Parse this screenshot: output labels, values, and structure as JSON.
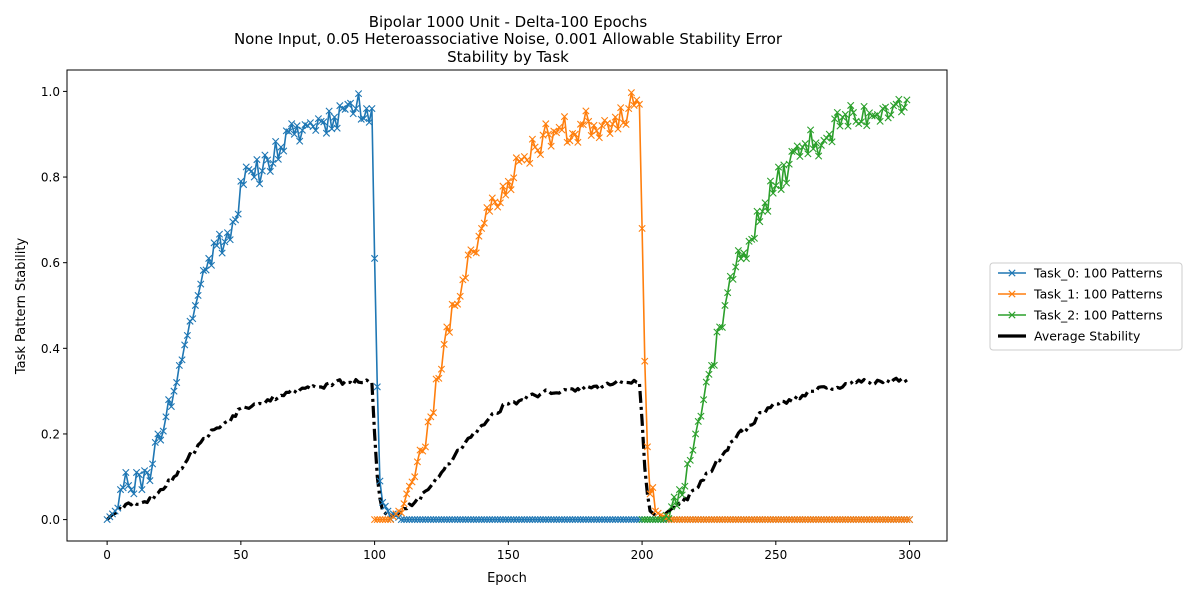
{
  "chart_data": {
    "type": "line",
    "title_lines": [
      "Bipolar 1000 Unit - Delta-100 Epochs",
      "None Input, 0.05 Heteroassociative Noise, 0.001 Allowable Stability Error",
      "Stability by Task"
    ],
    "xlabel": "Epoch",
    "ylabel": "Task Pattern Stability",
    "xlim": [
      -15,
      314
    ],
    "ylim": [
      -0.05,
      1.05
    ],
    "xticks": [
      0,
      50,
      100,
      150,
      200,
      250,
      300
    ],
    "yticks": [
      0.0,
      0.2,
      0.4,
      0.6,
      0.8,
      1.0
    ],
    "xtick_labels": [
      "0",
      "50",
      "100",
      "150",
      "200",
      "250",
      "300"
    ],
    "ytick_labels": [
      "0.0",
      "0.2",
      "0.4",
      "0.6",
      "0.8",
      "1.0"
    ],
    "grid": false,
    "legend_position": "outside right",
    "colors": {
      "task0": "#1f77b4",
      "task1": "#ff7f0e",
      "task2": "#2ca02c",
      "average": "#000000"
    },
    "series": [
      {
        "name": "Task_0: 100 Patterns",
        "key": "task0",
        "marker": "x",
        "linestyle": "solid",
        "anchors": [
          [
            0,
            0
          ],
          [
            3,
            0.02
          ],
          [
            5,
            0.07
          ],
          [
            7,
            0.11
          ],
          [
            9,
            0.07
          ],
          [
            11,
            0.11
          ],
          [
            13,
            0.07
          ],
          [
            15,
            0.11
          ],
          [
            17,
            0.13
          ],
          [
            19,
            0.2
          ],
          [
            22,
            0.24
          ],
          [
            25,
            0.3
          ],
          [
            27,
            0.36
          ],
          [
            30,
            0.43
          ],
          [
            33,
            0.5
          ],
          [
            35,
            0.55
          ],
          [
            38,
            0.61
          ],
          [
            41,
            0.64
          ],
          [
            45,
            0.67
          ],
          [
            48,
            0.7
          ],
          [
            50,
            0.79
          ],
          [
            55,
            0.8
          ],
          [
            60,
            0.84
          ],
          [
            65,
            0.87
          ],
          [
            70,
            0.9
          ],
          [
            75,
            0.92
          ],
          [
            80,
            0.93
          ],
          [
            85,
            0.94
          ],
          [
            88,
            0.96
          ],
          [
            90,
            0.97
          ],
          [
            93,
            0.96
          ],
          [
            97,
            0.96
          ],
          [
            99,
            0.96
          ],
          [
            100,
            0.61
          ],
          [
            101,
            0.31
          ],
          [
            102,
            0.09
          ],
          [
            103,
            0.04
          ],
          [
            105,
            0.02
          ],
          [
            108,
            0.01
          ],
          [
            110,
            0
          ],
          [
            300,
            0
          ]
        ],
        "noise": 0.035,
        "seed": 11
      },
      {
        "name": "Task_1: 100 Patterns",
        "key": "task1",
        "marker": "x",
        "linestyle": "solid",
        "anchors": [
          [
            100,
            0
          ],
          [
            106,
            0
          ],
          [
            109,
            0.02
          ],
          [
            112,
            0.06
          ],
          [
            115,
            0.1
          ],
          [
            118,
            0.16
          ],
          [
            121,
            0.24
          ],
          [
            124,
            0.33
          ],
          [
            127,
            0.45
          ],
          [
            130,
            0.5
          ],
          [
            133,
            0.56
          ],
          [
            136,
            0.63
          ],
          [
            140,
            0.68
          ],
          [
            143,
            0.72
          ],
          [
            146,
            0.73
          ],
          [
            150,
            0.79
          ],
          [
            155,
            0.84
          ],
          [
            160,
            0.87
          ],
          [
            165,
            0.9
          ],
          [
            170,
            0.91
          ],
          [
            175,
            0.9
          ],
          [
            180,
            0.93
          ],
          [
            185,
            0.92
          ],
          [
            190,
            0.94
          ],
          [
            195,
            0.96
          ],
          [
            198,
            0.98
          ],
          [
            199,
            0.97
          ],
          [
            200,
            0.68
          ],
          [
            201,
            0.37
          ],
          [
            202,
            0.17
          ],
          [
            203,
            0.06
          ],
          [
            205,
            0.02
          ],
          [
            207,
            0.01
          ],
          [
            210,
            0
          ],
          [
            300,
            0
          ]
        ],
        "noise": 0.035,
        "seed": 23
      },
      {
        "name": "Task_2: 100 Patterns",
        "key": "task2",
        "marker": "x",
        "linestyle": "solid",
        "anchors": [
          [
            200,
            0
          ],
          [
            208,
            0
          ],
          [
            211,
            0.03
          ],
          [
            214,
            0.07
          ],
          [
            217,
            0.13
          ],
          [
            220,
            0.2
          ],
          [
            223,
            0.28
          ],
          [
            226,
            0.36
          ],
          [
            229,
            0.45
          ],
          [
            232,
            0.53
          ],
          [
            235,
            0.59
          ],
          [
            240,
            0.65
          ],
          [
            245,
            0.72
          ],
          [
            250,
            0.78
          ],
          [
            255,
            0.83
          ],
          [
            260,
            0.87
          ],
          [
            265,
            0.88
          ],
          [
            270,
            0.9
          ],
          [
            275,
            0.94
          ],
          [
            280,
            0.93
          ],
          [
            285,
            0.95
          ],
          [
            290,
            0.96
          ],
          [
            295,
            0.97
          ],
          [
            299,
            0.98
          ]
        ],
        "noise": 0.035,
        "seed": 37
      },
      {
        "name": "Average Stability",
        "key": "average",
        "marker": "none",
        "linestyle": "dashdot",
        "anchors": [
          [
            0,
            0
          ],
          [
            5,
            0.03
          ],
          [
            10,
            0.04
          ],
          [
            15,
            0.04
          ],
          [
            20,
            0.07
          ],
          [
            25,
            0.1
          ],
          [
            30,
            0.14
          ],
          [
            35,
            0.18
          ],
          [
            40,
            0.21
          ],
          [
            45,
            0.23
          ],
          [
            50,
            0.26
          ],
          [
            55,
            0.27
          ],
          [
            60,
            0.28
          ],
          [
            65,
            0.29
          ],
          [
            70,
            0.3
          ],
          [
            75,
            0.31
          ],
          [
            80,
            0.31
          ],
          [
            85,
            0.32
          ],
          [
            90,
            0.32
          ],
          [
            95,
            0.32
          ],
          [
            99,
            0.32
          ],
          [
            100,
            0.2
          ],
          [
            101,
            0.1
          ],
          [
            102,
            0.05
          ],
          [
            103,
            0.02
          ],
          [
            105,
            0.01
          ],
          [
            108,
            0.01
          ],
          [
            110,
            0.02
          ],
          [
            115,
            0.04
          ],
          [
            120,
            0.07
          ],
          [
            125,
            0.11
          ],
          [
            130,
            0.15
          ],
          [
            135,
            0.19
          ],
          [
            140,
            0.22
          ],
          [
            145,
            0.25
          ],
          [
            150,
            0.27
          ],
          [
            155,
            0.28
          ],
          [
            160,
            0.29
          ],
          [
            165,
            0.3
          ],
          [
            170,
            0.3
          ],
          [
            175,
            0.3
          ],
          [
            180,
            0.31
          ],
          [
            185,
            0.31
          ],
          [
            190,
            0.32
          ],
          [
            195,
            0.32
          ],
          [
            199,
            0.32
          ],
          [
            200,
            0.23
          ],
          [
            201,
            0.12
          ],
          [
            202,
            0.06
          ],
          [
            203,
            0.02
          ],
          [
            205,
            0.01
          ],
          [
            208,
            0.01
          ],
          [
            210,
            0.02
          ],
          [
            215,
            0.04
          ],
          [
            220,
            0.07
          ],
          [
            225,
            0.11
          ],
          [
            230,
            0.15
          ],
          [
            235,
            0.19
          ],
          [
            240,
            0.22
          ],
          [
            245,
            0.25
          ],
          [
            250,
            0.27
          ],
          [
            255,
            0.28
          ],
          [
            260,
            0.29
          ],
          [
            265,
            0.3
          ],
          [
            270,
            0.31
          ],
          [
            275,
            0.31
          ],
          [
            280,
            0.32
          ],
          [
            285,
            0.32
          ],
          [
            290,
            0.32
          ],
          [
            295,
            0.33
          ],
          [
            299,
            0.32
          ]
        ],
        "noise": 0.007,
        "seed": 53
      }
    ]
  }
}
